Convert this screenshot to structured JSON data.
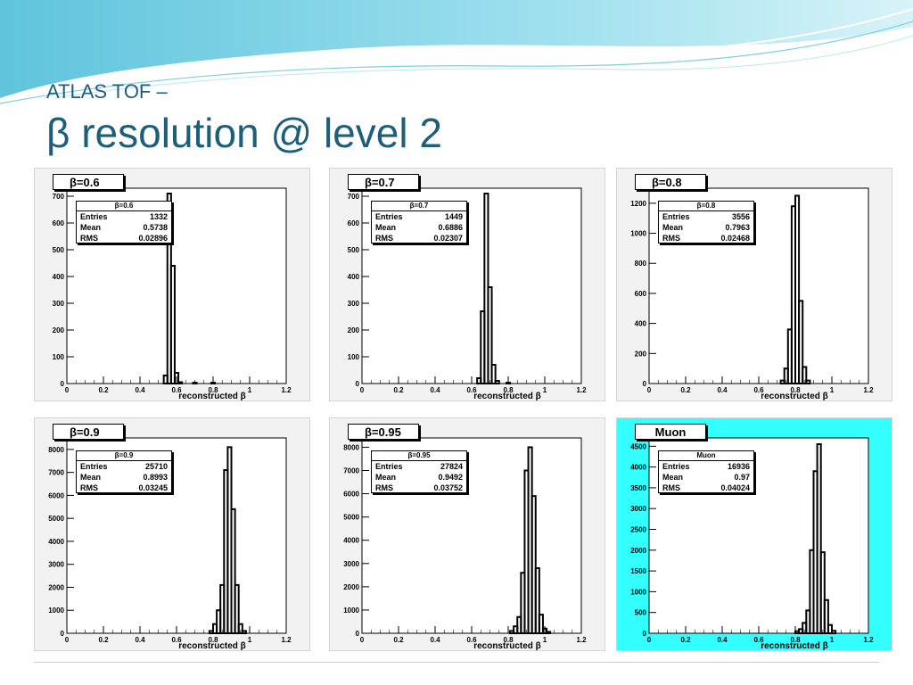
{
  "slide": {
    "title_line1": "ATLAS TOF –",
    "title_line2": "β resolution @ level 2",
    "accent_color": "#1d5f7a",
    "highlight_panel_color": "#33ffff"
  },
  "chart_data": [
    {
      "type": "histogram",
      "name_label": "β=0.6",
      "stats": {
        "title": "β=0.6",
        "entries_label": "Entries",
        "entries": "1332",
        "mean_label": "Mean",
        "mean": "0.5738",
        "rms_label": "RMS",
        "rms": "0.02896"
      },
      "xlabel": "reconstructed β",
      "xlim": [
        0,
        1.2
      ],
      "ylim": [
        0,
        730
      ],
      "xticks": [
        "0",
        "0.2",
        "0.4",
        "0.6",
        "0.8",
        "1",
        "1.2"
      ],
      "yticks": [
        0,
        100,
        200,
        300,
        400,
        500,
        600,
        700
      ],
      "bin_width": 0.02,
      "bins": [
        [
          0.53,
          30
        ],
        [
          0.55,
          710
        ],
        [
          0.57,
          440
        ],
        [
          0.59,
          40
        ],
        [
          0.61,
          5
        ],
        [
          0.69,
          3
        ],
        [
          0.79,
          3
        ]
      ],
      "highlight": false
    },
    {
      "type": "histogram",
      "name_label": "β=0.7",
      "stats": {
        "title": "β=0.7",
        "entries_label": "Entries",
        "entries": "1449",
        "mean_label": "Mean",
        "mean": "0.6886",
        "rms_label": "RMS",
        "rms": "0.02307"
      },
      "xlabel": "reconstructed β",
      "xlim": [
        0,
        1.2
      ],
      "ylim": [
        0,
        730
      ],
      "xticks": [
        "0",
        "0.2",
        "0.4",
        "0.6",
        "0.8",
        "1",
        "1.2"
      ],
      "yticks": [
        0,
        100,
        200,
        300,
        400,
        500,
        600,
        700
      ],
      "bin_width": 0.02,
      "bins": [
        [
          0.63,
          20
        ],
        [
          0.65,
          270
        ],
        [
          0.67,
          710
        ],
        [
          0.69,
          360
        ],
        [
          0.71,
          70
        ],
        [
          0.73,
          10
        ],
        [
          0.79,
          3
        ]
      ],
      "highlight": false
    },
    {
      "type": "histogram",
      "name_label": "β=0.8",
      "stats": {
        "title": "β=0.8",
        "entries_label": "Entries",
        "entries": "3556",
        "mean_label": "Mean",
        "mean": "0.7963",
        "rms_label": "RMS",
        "rms": "0.02468"
      },
      "xlabel": "reconstructed β",
      "xlim": [
        0,
        1.2
      ],
      "ylim": [
        0,
        1300
      ],
      "xticks": [
        "0",
        "0.2",
        "0.4",
        "0.6",
        "0.8",
        "1",
        "1.2"
      ],
      "yticks": [
        0,
        200,
        400,
        600,
        800,
        1000,
        1200
      ],
      "bin_width": 0.02,
      "bins": [
        [
          0.72,
          20
        ],
        [
          0.74,
          100
        ],
        [
          0.76,
          360
        ],
        [
          0.78,
          1180
        ],
        [
          0.8,
          1250
        ],
        [
          0.82,
          550
        ],
        [
          0.84,
          110
        ],
        [
          0.86,
          20
        ]
      ],
      "highlight": false
    },
    {
      "type": "histogram",
      "name_label": "β=0.9",
      "stats": {
        "title": "β=0.9",
        "entries_label": "Entries",
        "entries": "25710",
        "mean_label": "Mean",
        "mean": "0.8993",
        "rms_label": "RMS",
        "rms": "0.03245"
      },
      "xlabel": "reconstructed β",
      "xlim": [
        0,
        1.2
      ],
      "ylim": [
        0,
        8500
      ],
      "xticks": [
        "0",
        "0.2",
        "0.4",
        "0.6",
        "0.8",
        "1",
        "1.2"
      ],
      "yticks": [
        0,
        1000,
        2000,
        3000,
        4000,
        5000,
        6000,
        7000,
        8000
      ],
      "bin_width": 0.02,
      "bins": [
        [
          0.78,
          100
        ],
        [
          0.8,
          400
        ],
        [
          0.82,
          1000
        ],
        [
          0.84,
          2100
        ],
        [
          0.86,
          7100
        ],
        [
          0.88,
          8100
        ],
        [
          0.9,
          5400
        ],
        [
          0.92,
          2100
        ],
        [
          0.94,
          400
        ],
        [
          0.96,
          100
        ]
      ],
      "highlight": false
    },
    {
      "type": "histogram",
      "name_label": "β=0.95",
      "stats": {
        "title": "β=0.95",
        "entries_label": "Entries",
        "entries": "27824",
        "mean_label": "Mean",
        "mean": "0.9492",
        "rms_label": "RMS",
        "rms": "0.03752"
      },
      "xlabel": "reconstructed β",
      "xlim": [
        0,
        1.2
      ],
      "ylim": [
        0,
        8400
      ],
      "xticks": [
        "0",
        "0.2",
        "0.4",
        "0.6",
        "0.8",
        "1",
        "1.2"
      ],
      "yticks": [
        0,
        1000,
        2000,
        3000,
        4000,
        5000,
        6000,
        7000,
        8000
      ],
      "bin_width": 0.02,
      "bins": [
        [
          0.81,
          100
        ],
        [
          0.83,
          300
        ],
        [
          0.85,
          700
        ],
        [
          0.87,
          2600
        ],
        [
          0.89,
          7000
        ],
        [
          0.91,
          8000
        ],
        [
          0.93,
          5900
        ],
        [
          0.95,
          2800
        ],
        [
          0.97,
          800
        ],
        [
          0.99,
          200
        ],
        [
          1.01,
          60
        ]
      ],
      "highlight": false
    },
    {
      "type": "histogram",
      "name_label": "Muon",
      "stats": {
        "title": "Muon",
        "entries_label": "Entries",
        "entries": "16936",
        "mean_label": "Mean",
        "mean": "0.97",
        "rms_label": "RMS",
        "rms": "0.04024"
      },
      "xlabel": "reconstructed β",
      "xlim": [
        0,
        1.2
      ],
      "ylim": [
        0,
        4700
      ],
      "xticks": [
        "0",
        "0.2",
        "0.4",
        "0.6",
        "0.8",
        "1",
        "1.2"
      ],
      "yticks": [
        0,
        500,
        1000,
        1500,
        2000,
        2500,
        3000,
        3500,
        4000,
        4500
      ],
      "bin_width": 0.02,
      "bins": [
        [
          0.8,
          50
        ],
        [
          0.82,
          100
        ],
        [
          0.84,
          250
        ],
        [
          0.86,
          550
        ],
        [
          0.88,
          2000
        ],
        [
          0.9,
          3900
        ],
        [
          0.92,
          4550
        ],
        [
          0.94,
          1950
        ],
        [
          0.96,
          800
        ],
        [
          0.98,
          200
        ],
        [
          1.0,
          60
        ]
      ],
      "highlight": true
    }
  ]
}
